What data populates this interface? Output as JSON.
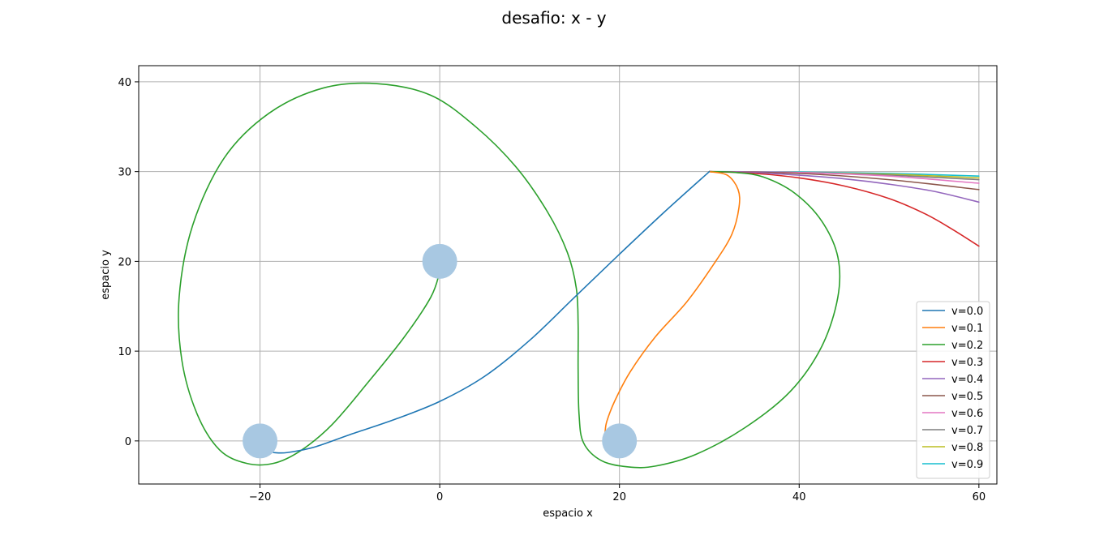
{
  "chart_data": {
    "type": "line",
    "title": "desafio: x - y",
    "xlabel": "espacio x",
    "ylabel": "espacio y",
    "xlim": [
      -33.5,
      62
    ],
    "ylim": [
      -4.8,
      41.8
    ],
    "xticks": [
      -20,
      0,
      20,
      40,
      60
    ],
    "yticks": [
      0,
      10,
      20,
      30,
      40
    ],
    "grid": true,
    "legend_position": "lower-right",
    "markers": {
      "color": "#a8c8e2",
      "points": [
        [
          0,
          20
        ],
        [
          -20,
          0
        ],
        [
          20,
          0
        ]
      ]
    },
    "series": [
      {
        "name": "v=0.0",
        "color": "#1f77b4",
        "points": [
          [
            30,
            30
          ],
          [
            25,
            25.5
          ],
          [
            20,
            20.8
          ],
          [
            15,
            16
          ],
          [
            10,
            11.2
          ],
          [
            5,
            7.2
          ],
          [
            0,
            4.4
          ],
          [
            -5,
            2.4
          ],
          [
            -10,
            0.7
          ],
          [
            -14,
            -0.7
          ],
          [
            -17,
            -1.3
          ],
          [
            -18.5,
            -1.3
          ]
        ]
      },
      {
        "name": "v=0.1",
        "color": "#ff7f0e",
        "points": [
          [
            30,
            30
          ],
          [
            32,
            29.6
          ],
          [
            33.2,
            28
          ],
          [
            33.3,
            26
          ],
          [
            32.5,
            23
          ],
          [
            30.5,
            19.7
          ],
          [
            27.5,
            15.5
          ],
          [
            24,
            11.6
          ],
          [
            21.2,
            7.7
          ],
          [
            19.5,
            4.5
          ],
          [
            18.6,
            2.2
          ],
          [
            18.4,
            1
          ]
        ]
      },
      {
        "name": "v=0.2",
        "color": "#2ca02c",
        "points": [
          [
            30,
            30
          ],
          [
            33,
            29.9
          ],
          [
            36,
            29.4
          ],
          [
            39.5,
            27.6
          ],
          [
            42.5,
            24.5
          ],
          [
            44.3,
            20.5
          ],
          [
            44.3,
            16
          ],
          [
            42.5,
            10.5
          ],
          [
            39,
            5.5
          ],
          [
            34,
            1.5
          ],
          [
            28.5,
            -1.5
          ],
          [
            24,
            -2.8
          ],
          [
            21,
            -2.9
          ],
          [
            18,
            -2.2
          ],
          [
            16,
            -0.2
          ],
          [
            15.5,
            3
          ],
          [
            15.4,
            8
          ],
          [
            15.4,
            13
          ],
          [
            15.2,
            17
          ],
          [
            14.2,
            21
          ],
          [
            12,
            25.5
          ],
          [
            8.5,
            30.5
          ],
          [
            4,
            35
          ],
          [
            -1,
            38.5
          ],
          [
            -7,
            39.8
          ],
          [
            -13,
            39.3
          ],
          [
            -19,
            36.5
          ],
          [
            -24,
            31.5
          ],
          [
            -27.5,
            24
          ],
          [
            -29,
            16
          ],
          [
            -28.7,
            9
          ],
          [
            -27,
            3
          ],
          [
            -24.5,
            -1
          ],
          [
            -21.5,
            -2.5
          ],
          [
            -18.5,
            -2.5
          ],
          [
            -15.5,
            -1.1
          ],
          [
            -12,
            1.8
          ],
          [
            -8,
            6.5
          ],
          [
            -4,
            11.5
          ],
          [
            -1,
            16
          ],
          [
            0,
            18.8
          ]
        ]
      },
      {
        "name": "v=0.3",
        "color": "#d62728",
        "points": [
          [
            30,
            30
          ],
          [
            35,
            29.8
          ],
          [
            40,
            29.3
          ],
          [
            45,
            28.4
          ],
          [
            50,
            27
          ],
          [
            54,
            25.3
          ],
          [
            57,
            23.6
          ],
          [
            60,
            21.7
          ]
        ]
      },
      {
        "name": "v=0.4",
        "color": "#9467bd",
        "points": [
          [
            30,
            30
          ],
          [
            35,
            29.9
          ],
          [
            40,
            29.6
          ],
          [
            45,
            29.2
          ],
          [
            50,
            28.6
          ],
          [
            55,
            27.8
          ],
          [
            60,
            26.6
          ]
        ]
      },
      {
        "name": "v=0.5",
        "color": "#8c564b",
        "points": [
          [
            30,
            30
          ],
          [
            40,
            29.8
          ],
          [
            50,
            29.1
          ],
          [
            60,
            28
          ]
        ]
      },
      {
        "name": "v=0.6",
        "color": "#e377c2",
        "points": [
          [
            30,
            30
          ],
          [
            40,
            29.9
          ],
          [
            50,
            29.5
          ],
          [
            60,
            28.7
          ]
        ]
      },
      {
        "name": "v=0.7",
        "color": "#7f7f7f",
        "points": [
          [
            30,
            30
          ],
          [
            40,
            29.9
          ],
          [
            50,
            29.6
          ],
          [
            60,
            29.1
          ]
        ]
      },
      {
        "name": "v=0.8",
        "color": "#bcbd22",
        "points": [
          [
            30,
            30
          ],
          [
            40,
            29.9
          ],
          [
            50,
            29.7
          ],
          [
            60,
            29.3
          ]
        ]
      },
      {
        "name": "v=0.9",
        "color": "#17becf",
        "points": [
          [
            30,
            30
          ],
          [
            40,
            29.95
          ],
          [
            50,
            29.8
          ],
          [
            60,
            29.5
          ]
        ]
      }
    ]
  }
}
